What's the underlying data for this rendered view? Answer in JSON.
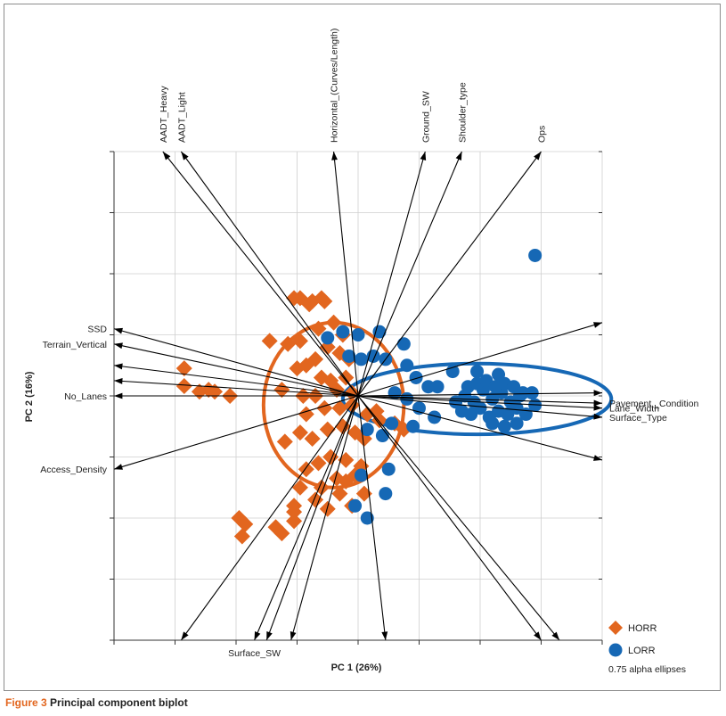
{
  "caption": {
    "figure_label": "Figure 3",
    "title": "Principal component biplot"
  },
  "colors": {
    "horr": "#e2661f",
    "lorr": "#1668b5",
    "axis": "#000000",
    "grid": "#cfcfcf"
  },
  "chart_data": {
    "type": "scatter",
    "title": "",
    "xlabel": "PC 1 (26%)",
    "ylabel": "PC 2 (16%)",
    "xlim": [
      -4,
      4
    ],
    "ylim": [
      -4,
      4
    ],
    "grid": true,
    "legend_position": "bottom-right",
    "legend": {
      "note": "0.75 alpha ellipses"
    },
    "series": [
      {
        "name": "HORR",
        "marker": "diamond",
        "color": "#e2661f",
        "points": [
          [
            -2.85,
            0.16
          ],
          [
            -2.6,
            0.07
          ],
          [
            -2.45,
            0.1
          ],
          [
            -2.35,
            0.07
          ],
          [
            -2.1,
            0.0
          ],
          [
            -2.85,
            0.45
          ],
          [
            -1.05,
            1.6
          ],
          [
            -0.95,
            1.6
          ],
          [
            -0.75,
            1.55
          ],
          [
            -0.6,
            1.6
          ],
          [
            -0.55,
            1.55
          ],
          [
            -0.8,
            1.5
          ],
          [
            -1.45,
            0.9
          ],
          [
            -1.15,
            0.85
          ],
          [
            -0.95,
            0.9
          ],
          [
            -1.0,
            0.45
          ],
          [
            -0.85,
            0.5
          ],
          [
            -0.7,
            0.6
          ],
          [
            -0.5,
            0.8
          ],
          [
            -0.3,
            0.7
          ],
          [
            -0.15,
            0.6
          ],
          [
            -0.6,
            0.3
          ],
          [
            -0.45,
            0.25
          ],
          [
            -0.2,
            0.3
          ],
          [
            -1.25,
            0.1
          ],
          [
            -0.9,
            0.0
          ],
          [
            -0.7,
            0.0
          ],
          [
            -0.35,
            0.1
          ],
          [
            -0.1,
            0.05
          ],
          [
            -0.85,
            -0.3
          ],
          [
            -0.55,
            -0.2
          ],
          [
            -0.3,
            -0.2
          ],
          [
            -0.1,
            -0.15
          ],
          [
            -1.2,
            -0.75
          ],
          [
            -0.95,
            -0.6
          ],
          [
            -0.75,
            -0.7
          ],
          [
            -0.5,
            -0.55
          ],
          [
            -0.25,
            -0.5
          ],
          [
            -0.05,
            -0.6
          ],
          [
            0.1,
            -0.7
          ],
          [
            -0.85,
            -1.2
          ],
          [
            -0.65,
            -1.1
          ],
          [
            -0.45,
            -1.0
          ],
          [
            -0.2,
            -1.05
          ],
          [
            0.05,
            -1.15
          ],
          [
            -0.95,
            -1.5
          ],
          [
            -0.7,
            -1.7
          ],
          [
            -0.5,
            -1.85
          ],
          [
            -0.3,
            -1.6
          ],
          [
            -0.1,
            -1.8
          ],
          [
            0.1,
            -1.6
          ],
          [
            -1.05,
            -1.9
          ],
          [
            -0.6,
            -1.5
          ],
          [
            -0.35,
            -1.35
          ],
          [
            -0.2,
            -1.4
          ],
          [
            -0.05,
            -1.3
          ],
          [
            0.6,
            -0.45
          ],
          [
            0.75,
            -0.55
          ],
          [
            -1.95,
            -2.0
          ],
          [
            -1.85,
            -2.1
          ],
          [
            -1.9,
            -2.3
          ],
          [
            -1.35,
            -2.15
          ],
          [
            -1.25,
            -2.25
          ],
          [
            -1.05,
            -2.05
          ],
          [
            -1.05,
            -1.8
          ],
          [
            0.15,
            -0.3
          ],
          [
            0.3,
            -0.25
          ],
          [
            0.35,
            -0.4
          ],
          [
            -0.65,
            1.1
          ],
          [
            -0.4,
            1.2
          ],
          [
            -0.25,
            1.0
          ]
        ]
      },
      {
        "name": "LORR",
        "marker": "circle",
        "color": "#1668b5",
        "points": [
          [
            2.9,
            2.3
          ],
          [
            -0.5,
            0.95
          ],
          [
            -0.25,
            1.05
          ],
          [
            0.0,
            1.0
          ],
          [
            0.35,
            1.05
          ],
          [
            0.75,
            0.85
          ],
          [
            -0.15,
            0.65
          ],
          [
            0.05,
            0.6
          ],
          [
            0.25,
            0.65
          ],
          [
            0.45,
            0.6
          ],
          [
            0.8,
            0.5
          ],
          [
            0.95,
            0.3
          ],
          [
            1.15,
            0.15
          ],
          [
            1.3,
            0.15
          ],
          [
            1.55,
            0.4
          ],
          [
            0.6,
            0.05
          ],
          [
            0.8,
            -0.05
          ],
          [
            1.0,
            -0.2
          ],
          [
            1.25,
            -0.35
          ],
          [
            0.55,
            -0.45
          ],
          [
            0.9,
            -0.5
          ],
          [
            0.15,
            -0.55
          ],
          [
            0.4,
            -0.65
          ],
          [
            0.5,
            -1.2
          ],
          [
            0.05,
            -1.3
          ],
          [
            0.45,
            -1.6
          ],
          [
            -0.05,
            -1.8
          ],
          [
            0.15,
            -2.0
          ],
          [
            1.6,
            -0.1
          ],
          [
            1.75,
            0.0
          ],
          [
            1.9,
            -0.1
          ],
          [
            2.05,
            0.1
          ],
          [
            2.2,
            -0.05
          ],
          [
            2.35,
            0.05
          ],
          [
            2.5,
            -0.1
          ],
          [
            2.65,
            0.0
          ],
          [
            1.7,
            -0.25
          ],
          [
            1.85,
            -0.3
          ],
          [
            2.0,
            -0.2
          ],
          [
            2.15,
            -0.35
          ],
          [
            2.3,
            -0.25
          ],
          [
            2.45,
            -0.3
          ],
          [
            2.6,
            -0.2
          ],
          [
            2.75,
            -0.3
          ],
          [
            1.8,
            0.15
          ],
          [
            1.95,
            0.2
          ],
          [
            2.1,
            0.25
          ],
          [
            2.25,
            0.15
          ],
          [
            2.4,
            0.2
          ],
          [
            2.55,
            0.15
          ],
          [
            2.7,
            0.05
          ],
          [
            2.2,
            -0.45
          ],
          [
            2.4,
            -0.5
          ],
          [
            2.6,
            -0.45
          ],
          [
            2.85,
            0.05
          ],
          [
            2.9,
            -0.15
          ],
          [
            1.95,
            0.4
          ],
          [
            2.3,
            0.35
          ]
        ]
      }
    ],
    "ellipses": [
      {
        "series": "HORR",
        "center": [
          -0.4,
          -0.15
        ],
        "radii": [
          1.15,
          1.35
        ],
        "color": "#e2661f"
      },
      {
        "series": "LORR",
        "center": [
          1.95,
          -0.05
        ],
        "radii": [
          2.2,
          0.58
        ],
        "color": "#1668b5"
      }
    ],
    "loadings": [
      {
        "label": "AADT_Heavy",
        "end": [
          -3.2,
          4.0
        ],
        "label_side": "top"
      },
      {
        "label": "AADT_Light",
        "end": [
          -2.9,
          4.0
        ],
        "label_side": "top"
      },
      {
        "label": "Horizontal_(Curves/Length)",
        "end": [
          -0.4,
          4.0
        ],
        "label_side": "top"
      },
      {
        "label": "Ground_SW",
        "end": [
          1.1,
          4.0
        ],
        "label_side": "top"
      },
      {
        "label": "Shoulder_type",
        "end": [
          1.7,
          4.0
        ],
        "label_side": "top"
      },
      {
        "label": "Ops",
        "end": [
          3.0,
          4.0
        ],
        "label_side": "top"
      },
      {
        "label": "SSD",
        "end": [
          -4.0,
          1.1
        ],
        "label_side": "left"
      },
      {
        "label": "Terrain_Vertical",
        "end": [
          -4.0,
          0.85
        ],
        "label_side": "left"
      },
      {
        "label": "",
        "end": [
          -4.0,
          0.5
        ],
        "label_side": "none"
      },
      {
        "label": "",
        "end": [
          -4.0,
          0.25
        ],
        "label_side": "none"
      },
      {
        "label": "No_Lanes",
        "end": [
          -4.0,
          0.0
        ],
        "label_side": "left"
      },
      {
        "label": "Access_Density",
        "end": [
          -4.0,
          -1.2
        ],
        "label_side": "left"
      },
      {
        "label": "Pavement _Condition",
        "end": [
          4.0,
          -0.12
        ],
        "label_side": "right"
      },
      {
        "label": "Lane_Width",
        "end": [
          4.0,
          -0.2
        ],
        "label_side": "right"
      },
      {
        "label": "Surface_Type",
        "end": [
          4.0,
          -0.35
        ],
        "label_side": "right"
      },
      {
        "label": "",
        "end": [
          4.0,
          1.2
        ],
        "label_side": "none"
      },
      {
        "label": "",
        "end": [
          4.0,
          -1.05
        ],
        "label_side": "none"
      },
      {
        "label": "",
        "end": [
          4.0,
          0.05
        ],
        "label_side": "none"
      },
      {
        "label": "Surface_SW",
        "end": [
          -1.7,
          -4.0
        ],
        "label_side": "bottom"
      },
      {
        "label": "",
        "end": [
          -1.1,
          -4.0
        ],
        "label_side": "none"
      },
      {
        "label": "",
        "end": [
          -2.9,
          -4.0
        ],
        "label_side": "none"
      },
      {
        "label": "",
        "end": [
          0.45,
          -4.0
        ],
        "label_side": "none"
      },
      {
        "label": "",
        "end": [
          3.0,
          -4.0
        ],
        "label_side": "none"
      },
      {
        "label": "",
        "end": [
          3.3,
          -4.0
        ],
        "label_side": "none"
      },
      {
        "label": "",
        "end": [
          -1.5,
          -4.0
        ],
        "label_side": "none"
      }
    ]
  }
}
